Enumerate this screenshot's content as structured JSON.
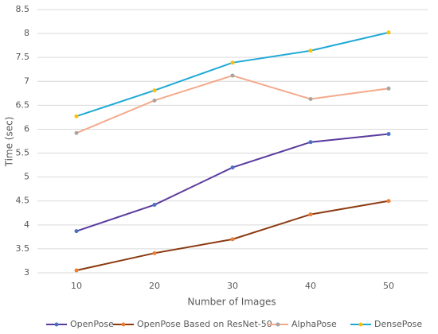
{
  "chart_data": {
    "type": "line",
    "x_label": "Number of Images",
    "y_label": "Time (sec)",
    "categories": [
      "10",
      "20",
      "30",
      "40",
      "50"
    ],
    "ylim": [
      3,
      8.5
    ],
    "yticks": [
      3,
      3.5,
      4,
      4.5,
      5,
      5.5,
      6,
      6.5,
      7,
      7.5,
      8,
      8.5
    ],
    "grid": true,
    "legend": "bottom",
    "series": [
      {
        "name": "OpenPose",
        "color": "#5b3a9e",
        "marker_color": "#4472c4",
        "values": [
          3.87,
          4.42,
          5.2,
          5.73,
          5.9
        ]
      },
      {
        "name": "OpenPose Based on ResNet-50",
        "color": "#8b3a10",
        "marker_color": "#ed7d31",
        "values": [
          3.05,
          3.41,
          3.7,
          4.22,
          4.5
        ]
      },
      {
        "name": "AlphaPose",
        "color": "#f4a98a",
        "marker_color": "#a5a5a5",
        "values": [
          5.92,
          6.6,
          7.12,
          6.63,
          6.85
        ]
      },
      {
        "name": "DensePose",
        "color": "#1fa9d6",
        "marker_color": "#ffc000",
        "values": [
          6.27,
          6.81,
          7.39,
          7.64,
          8.02
        ]
      }
    ]
  }
}
